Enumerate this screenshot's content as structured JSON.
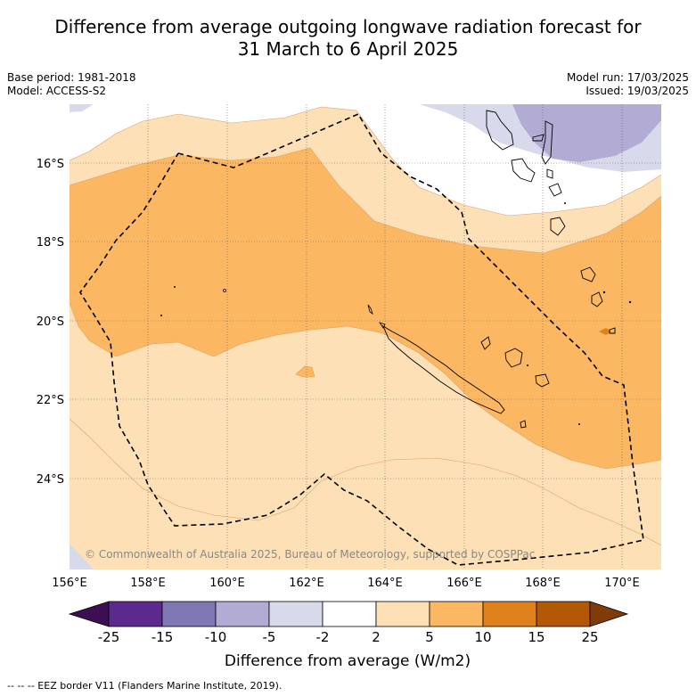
{
  "title_line1": "Difference from average outgoing longwave radiation forecast for",
  "title_line2": "31 March to 6 April 2025",
  "meta": {
    "base_period": "Base period: 1981-2018",
    "model": "Model: ACCESS-S2",
    "model_run": "Model run: 17/03/2025",
    "issued": "Issued: 19/03/2025"
  },
  "map": {
    "lat_labels": [
      "16°S",
      "18°S",
      "20°S",
      "22°S",
      "24°S"
    ],
    "lon_labels": [
      "156°E",
      "158°E",
      "160°E",
      "162°E",
      "164°E",
      "166°E",
      "168°E",
      "170°E"
    ],
    "copyright": "© Commonwealth of Australia 2025, Bureau of Meteorology, supported by COSPPac"
  },
  "colorbar": {
    "title": "Difference from average (W/m2)",
    "tick_labels": [
      "-25",
      "-15",
      "-10",
      "-5",
      "-2",
      "2",
      "5",
      "10",
      "15",
      "25"
    ],
    "colors": [
      "#3b0f52",
      "#5c2a8c",
      "#8078b4",
      "#b2abd3",
      "#d8d9eb",
      "#ffffff",
      "#fee0b6",
      "#fbb761",
      "#e0821c",
      "#b35806",
      "#7f3b08"
    ]
  },
  "footer": "--  --  -- EEZ border V11 (Flanders Marine Institute, 2019)."
}
